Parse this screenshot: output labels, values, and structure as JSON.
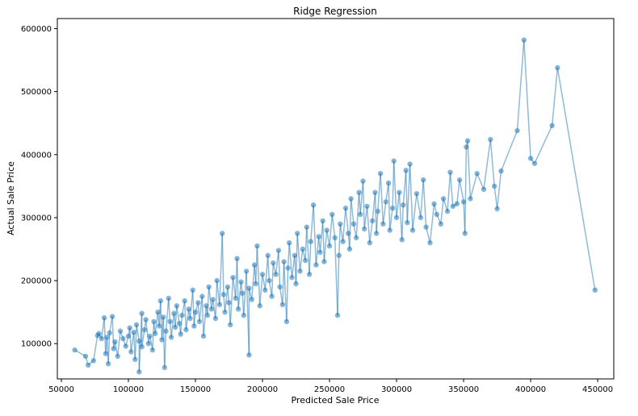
{
  "chart_data": {
    "type": "scatter",
    "title": "Ridge Regression",
    "xlabel": "Predicted Sale Price",
    "ylabel": "Actual Sale Price",
    "xlim": [
      47000,
      462000
    ],
    "ylim": [
      44000,
      616000
    ],
    "xticks": [
      50000,
      100000,
      150000,
      200000,
      250000,
      300000,
      350000,
      400000,
      450000
    ],
    "yticks": [
      100000,
      200000,
      300000,
      400000,
      500000,
      600000
    ],
    "grid": false,
    "legend": "none",
    "connected_points": true,
    "series": [
      {
        "color": "#1f77b4",
        "points": [
          [
            60000,
            90000
          ],
          [
            68000,
            80000
          ],
          [
            70000,
            66000
          ],
          [
            74000,
            73000
          ],
          [
            77000,
            113000
          ],
          [
            78000,
            116000
          ],
          [
            80000,
            108000
          ],
          [
            82000,
            141000
          ],
          [
            83000,
            84000
          ],
          [
            84000,
            110000
          ],
          [
            85000,
            68000
          ],
          [
            86000,
            117000
          ],
          [
            88000,
            143000
          ],
          [
            89000,
            92000
          ],
          [
            90000,
            103000
          ],
          [
            92000,
            80000
          ],
          [
            94000,
            120000
          ],
          [
            96000,
            108000
          ],
          [
            98000,
            96000
          ],
          [
            100000,
            112000
          ],
          [
            101000,
            125000
          ],
          [
            102000,
            87000
          ],
          [
            104000,
            118000
          ],
          [
            105000,
            75000
          ],
          [
            106000,
            130000
          ],
          [
            108000,
            104000
          ],
          [
            108000,
            55000
          ],
          [
            110000,
            148000
          ],
          [
            110000,
            95000
          ],
          [
            112000,
            122000
          ],
          [
            113000,
            138000
          ],
          [
            115000,
            100000
          ],
          [
            116000,
            112000
          ],
          [
            118000,
            90000
          ],
          [
            119000,
            135000
          ],
          [
            120000,
            116000
          ],
          [
            122000,
            150000
          ],
          [
            123000,
            128000
          ],
          [
            124000,
            168000
          ],
          [
            125000,
            106000
          ],
          [
            126000,
            142000
          ],
          [
            127000,
            62000
          ],
          [
            128000,
            120000
          ],
          [
            130000,
            172000
          ],
          [
            131000,
            135000
          ],
          [
            132000,
            110000
          ],
          [
            134000,
            148000
          ],
          [
            135000,
            126000
          ],
          [
            136000,
            160000
          ],
          [
            138000,
            132000
          ],
          [
            139000,
            115000
          ],
          [
            140000,
            145000
          ],
          [
            142000,
            168000
          ],
          [
            143000,
            122000
          ],
          [
            145000,
            155000
          ],
          [
            146000,
            140000
          ],
          [
            148000,
            185000
          ],
          [
            149000,
            128000
          ],
          [
            150000,
            150000
          ],
          [
            152000,
            165000
          ],
          [
            153000,
            135000
          ],
          [
            155000,
            175000
          ],
          [
            156000,
            112000
          ],
          [
            158000,
            160000
          ],
          [
            159000,
            145000
          ],
          [
            160000,
            190000
          ],
          [
            162000,
            155000
          ],
          [
            163000,
            170000
          ],
          [
            165000,
            140000
          ],
          [
            166000,
            200000
          ],
          [
            168000,
            162000
          ],
          [
            170000,
            275000
          ],
          [
            171000,
            178000
          ],
          [
            172000,
            150000
          ],
          [
            174000,
            190000
          ],
          [
            175000,
            165000
          ],
          [
            176000,
            130000
          ],
          [
            178000,
            205000
          ],
          [
            180000,
            172000
          ],
          [
            181000,
            235000
          ],
          [
            182000,
            155000
          ],
          [
            184000,
            198000
          ],
          [
            185000,
            180000
          ],
          [
            186000,
            145000
          ],
          [
            188000,
            215000
          ],
          [
            190000,
            82000
          ],
          [
            190000,
            188000
          ],
          [
            192000,
            170000
          ],
          [
            194000,
            225000
          ],
          [
            195000,
            195000
          ],
          [
            196000,
            255000
          ],
          [
            198000,
            160000
          ],
          [
            200000,
            210000
          ],
          [
            202000,
            185000
          ],
          [
            204000,
            240000
          ],
          [
            205000,
            200000
          ],
          [
            207000,
            175000
          ],
          [
            208000,
            228000
          ],
          [
            210000,
            210000
          ],
          [
            212000,
            248000
          ],
          [
            213000,
            190000
          ],
          [
            215000,
            162000
          ],
          [
            216000,
            230000
          ],
          [
            218000,
            135000
          ],
          [
            219000,
            220000
          ],
          [
            220000,
            260000
          ],
          [
            222000,
            205000
          ],
          [
            224000,
            240000
          ],
          [
            225000,
            195000
          ],
          [
            226000,
            275000
          ],
          [
            228000,
            215000
          ],
          [
            230000,
            250000
          ],
          [
            232000,
            232000
          ],
          [
            233000,
            285000
          ],
          [
            235000,
            210000
          ],
          [
            236000,
            262000
          ],
          [
            238000,
            320000
          ],
          [
            240000,
            225000
          ],
          [
            242000,
            270000
          ],
          [
            243000,
            245000
          ],
          [
            245000,
            295000
          ],
          [
            246000,
            230000
          ],
          [
            248000,
            280000
          ],
          [
            250000,
            255000
          ],
          [
            252000,
            305000
          ],
          [
            254000,
            268000
          ],
          [
            256000,
            145000
          ],
          [
            257000,
            240000
          ],
          [
            258000,
            290000
          ],
          [
            260000,
            262000
          ],
          [
            262000,
            315000
          ],
          [
            264000,
            275000
          ],
          [
            265000,
            250000
          ],
          [
            266000,
            330000
          ],
          [
            268000,
            290000
          ],
          [
            270000,
            268000
          ],
          [
            272000,
            340000
          ],
          [
            273000,
            305000
          ],
          [
            275000,
            358000
          ],
          [
            276000,
            282000
          ],
          [
            278000,
            318000
          ],
          [
            280000,
            260000
          ],
          [
            282000,
            295000
          ],
          [
            284000,
            340000
          ],
          [
            285000,
            275000
          ],
          [
            286000,
            310000
          ],
          [
            288000,
            370000
          ],
          [
            290000,
            290000
          ],
          [
            292000,
            325000
          ],
          [
            294000,
            355000
          ],
          [
            295000,
            280000
          ],
          [
            297000,
            315000
          ],
          [
            298000,
            390000
          ],
          [
            300000,
            300000
          ],
          [
            302000,
            340000
          ],
          [
            304000,
            265000
          ],
          [
            305000,
            320000
          ],
          [
            307000,
            375000
          ],
          [
            308000,
            292000
          ],
          [
            310000,
            385000
          ],
          [
            312000,
            280000
          ],
          [
            315000,
            338000
          ],
          [
            318000,
            300000
          ],
          [
            320000,
            360000
          ],
          [
            322000,
            285000
          ],
          [
            325000,
            260000
          ],
          [
            328000,
            322000
          ],
          [
            330000,
            305000
          ],
          [
            333000,
            290000
          ],
          [
            335000,
            330000
          ],
          [
            338000,
            310000
          ],
          [
            340000,
            372000
          ],
          [
            342000,
            318000
          ],
          [
            345000,
            322000
          ],
          [
            347000,
            360000
          ],
          [
            350000,
            325000
          ],
          [
            351000,
            275000
          ],
          [
            352000,
            412000
          ],
          [
            353000,
            422000
          ],
          [
            355000,
            330000
          ],
          [
            360000,
            370000
          ],
          [
            365000,
            345000
          ],
          [
            370000,
            424000
          ],
          [
            373000,
            350000
          ],
          [
            375000,
            314000
          ],
          [
            378000,
            374000
          ],
          [
            390000,
            438000
          ],
          [
            395000,
            582000
          ],
          [
            400000,
            394000
          ],
          [
            403000,
            386000
          ],
          [
            416000,
            446000
          ],
          [
            420000,
            538000
          ],
          [
            448000,
            185000
          ]
        ]
      }
    ]
  }
}
